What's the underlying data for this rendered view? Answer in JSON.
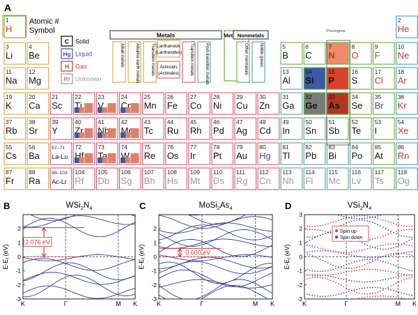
{
  "panel_labels": {
    "a": "A",
    "b": "B",
    "c": "C",
    "d": "D"
  },
  "key": {
    "cell": {
      "number": "1",
      "symbol": "H"
    },
    "text_1": "Atomic #",
    "text_2": "Symbol",
    "states": [
      {
        "sym": "C",
        "label": "Solid",
        "color": "#000000"
      },
      {
        "sym": "Hg",
        "label": "Liquid",
        "color": "#4a4aa8"
      },
      {
        "sym": "H",
        "label": "Gas",
        "color": "#c0392b"
      },
      {
        "sym": "Rf",
        "label": "Unknown",
        "color": "#999999"
      }
    ]
  },
  "category_legend": {
    "metals_label": "Metals",
    "metalloids_label": "Metalloids",
    "nonmetals_label": "Nonmetals",
    "metal_items": [
      {
        "label": "Alkali metals",
        "color": "#d9a43a"
      },
      {
        "label": "Alkaline earth metals",
        "color": "#d9a43a"
      },
      {
        "label": "Transition metals",
        "color": "#d9a43a"
      },
      {
        "label": "Transition metals",
        "color": "#e0566e"
      },
      {
        "label": "Post-transition metals",
        "color": "#5f9ea0"
      }
    ],
    "lanthanoids": "Lanthanoids (Lanthanides)",
    "actinoids": "Actinoids (Actinides)",
    "metalloids_color": "#6aaa3a",
    "nonmetal_items": [
      {
        "label": "Other nonmetals",
        "color": "#6aaa3a"
      },
      {
        "label": "Noble gases",
        "color": "#3aa0c8"
      }
    ]
  },
  "pnictogens_label": "Pnictogens",
  "elements": [
    {
      "n": "1",
      "s": "H",
      "col": 1,
      "row": 1,
      "st": "gas",
      "cat": "nonmetal"
    },
    {
      "n": "2",
      "s": "He",
      "col": 18,
      "row": 1,
      "st": "gas",
      "cat": "noble"
    },
    {
      "n": "3",
      "s": "Li",
      "col": 1,
      "row": 2,
      "st": "solid",
      "cat": "alkali"
    },
    {
      "n": "4",
      "s": "Be",
      "col": 2,
      "row": 2,
      "st": "solid",
      "cat": "alkaline"
    },
    {
      "n": "5",
      "s": "B",
      "col": 13,
      "row": 2,
      "st": "solid",
      "cat": "metalloid"
    },
    {
      "n": "6",
      "s": "C",
      "col": 14,
      "row": 2,
      "st": "solid",
      "cat": "nonmetal"
    },
    {
      "n": "7",
      "s": "N",
      "col": 15,
      "row": 2,
      "st": "gas",
      "cat": "nonmetal",
      "fill": "#f08a6a"
    },
    {
      "n": "8",
      "s": "O",
      "col": 16,
      "row": 2,
      "st": "gas",
      "cat": "nonmetal"
    },
    {
      "n": "9",
      "s": "F",
      "col": 17,
      "row": 2,
      "st": "gas",
      "cat": "nonmetal"
    },
    {
      "n": "10",
      "s": "Ne",
      "col": 18,
      "row": 2,
      "st": "gas",
      "cat": "noble"
    },
    {
      "n": "11",
      "s": "Na",
      "col": 1,
      "row": 3,
      "st": "solid",
      "cat": "alkali"
    },
    {
      "n": "12",
      "s": "Mg",
      "col": 2,
      "row": 3,
      "st": "solid",
      "cat": "alkaline"
    },
    {
      "n": "13",
      "s": "Al",
      "col": 13,
      "row": 3,
      "st": "solid",
      "cat": "post"
    },
    {
      "n": "14",
      "s": "Si",
      "col": 14,
      "row": 3,
      "st": "solid",
      "cat": "metalloid",
      "fill": "#3a5aa8"
    },
    {
      "n": "15",
      "s": "P",
      "col": 15,
      "row": 3,
      "st": "solid",
      "cat": "nonmetal",
      "fill": "#d9412a"
    },
    {
      "n": "16",
      "s": "S",
      "col": 16,
      "row": 3,
      "st": "solid",
      "cat": "nonmetal"
    },
    {
      "n": "17",
      "s": "Cl",
      "col": 17,
      "row": 3,
      "st": "gas",
      "cat": "nonmetal"
    },
    {
      "n": "18",
      "s": "Ar",
      "col": 18,
      "row": 3,
      "st": "gas",
      "cat": "noble"
    },
    {
      "n": "19",
      "s": "K",
      "col": 1,
      "row": 4,
      "st": "solid",
      "cat": "alkali"
    },
    {
      "n": "20",
      "s": "Ca",
      "col": 2,
      "row": 4,
      "st": "solid",
      "cat": "alkaline"
    },
    {
      "n": "21",
      "s": "Sc",
      "col": 3,
      "row": 4,
      "st": "solid",
      "cat": "transition"
    },
    {
      "n": "22",
      "s": "Ti",
      "col": 4,
      "row": 4,
      "st": "solid",
      "cat": "transition",
      "bars": true
    },
    {
      "n": "23",
      "s": "V",
      "col": 5,
      "row": 4,
      "st": "solid",
      "cat": "transition",
      "bars": true
    },
    {
      "n": "24",
      "s": "Cr",
      "col": 6,
      "row": 4,
      "st": "solid",
      "cat": "transition",
      "bars": true
    },
    {
      "n": "25",
      "s": "Mn",
      "col": 7,
      "row": 4,
      "st": "solid",
      "cat": "transition"
    },
    {
      "n": "26",
      "s": "Fe",
      "col": 8,
      "row": 4,
      "st": "solid",
      "cat": "transition"
    },
    {
      "n": "27",
      "s": "Co",
      "col": 9,
      "row": 4,
      "st": "solid",
      "cat": "transition"
    },
    {
      "n": "28",
      "s": "Ni",
      "col": 10,
      "row": 4,
      "st": "solid",
      "cat": "transition"
    },
    {
      "n": "29",
      "s": "Cu",
      "col": 11,
      "row": 4,
      "st": "solid",
      "cat": "transition"
    },
    {
      "n": "30",
      "s": "Zn",
      "col": 12,
      "row": 4,
      "st": "solid",
      "cat": "transition"
    },
    {
      "n": "31",
      "s": "Ga",
      "col": 13,
      "row": 4,
      "st": "solid",
      "cat": "post"
    },
    {
      "n": "32",
      "s": "Ge",
      "col": 14,
      "row": 4,
      "st": "solid",
      "cat": "metalloid",
      "fill": "#7a7a7a"
    },
    {
      "n": "33",
      "s": "As",
      "col": 15,
      "row": 4,
      "st": "solid",
      "cat": "metalloid",
      "fill": "#b8341f"
    },
    {
      "n": "34",
      "s": "Se",
      "col": 16,
      "row": 4,
      "st": "solid",
      "cat": "nonmetal"
    },
    {
      "n": "35",
      "s": "Br",
      "col": 17,
      "row": 4,
      "st": "liquid",
      "cat": "nonmetal"
    },
    {
      "n": "36",
      "s": "Kr",
      "col": 18,
      "row": 4,
      "st": "gas",
      "cat": "noble"
    },
    {
      "n": "37",
      "s": "Rb",
      "col": 1,
      "row": 5,
      "st": "solid",
      "cat": "alkali"
    },
    {
      "n": "38",
      "s": "Sr",
      "col": 2,
      "row": 5,
      "st": "solid",
      "cat": "alkaline"
    },
    {
      "n": "39",
      "s": "Y",
      "col": 3,
      "row": 5,
      "st": "solid",
      "cat": "transition"
    },
    {
      "n": "40",
      "s": "Zr",
      "col": 4,
      "row": 5,
      "st": "solid",
      "cat": "transition",
      "bars": true
    },
    {
      "n": "41",
      "s": "Nb",
      "col": 5,
      "row": 5,
      "st": "solid",
      "cat": "transition",
      "bars": true
    },
    {
      "n": "42",
      "s": "Mo",
      "col": 6,
      "row": 5,
      "st": "solid",
      "cat": "transition",
      "bars": true
    },
    {
      "n": "43",
      "s": "Tc",
      "col": 7,
      "row": 5,
      "st": "solid",
      "cat": "transition"
    },
    {
      "n": "44",
      "s": "Ru",
      "col": 8,
      "row": 5,
      "st": "solid",
      "cat": "transition"
    },
    {
      "n": "45",
      "s": "Rh",
      "col": 9,
      "row": 5,
      "st": "solid",
      "cat": "transition"
    },
    {
      "n": "46",
      "s": "Pd",
      "col": 10,
      "row": 5,
      "st": "solid",
      "cat": "transition"
    },
    {
      "n": "47",
      "s": "Ag",
      "col": 11,
      "row": 5,
      "st": "solid",
      "cat": "transition"
    },
    {
      "n": "48",
      "s": "Cd",
      "col": 12,
      "row": 5,
      "st": "solid",
      "cat": "transition"
    },
    {
      "n": "49",
      "s": "In",
      "col": 13,
      "row": 5,
      "st": "solid",
      "cat": "post"
    },
    {
      "n": "50",
      "s": "Sn",
      "col": 14,
      "row": 5,
      "st": "solid",
      "cat": "post"
    },
    {
      "n": "51",
      "s": "Sb",
      "col": 15,
      "row": 5,
      "st": "solid",
      "cat": "metalloid"
    },
    {
      "n": "52",
      "s": "Te",
      "col": 16,
      "row": 5,
      "st": "solid",
      "cat": "metalloid"
    },
    {
      "n": "53",
      "s": "I",
      "col": 17,
      "row": 5,
      "st": "solid",
      "cat": "nonmetal"
    },
    {
      "n": "54",
      "s": "Xe",
      "col": 18,
      "row": 5,
      "st": "gas",
      "cat": "noble"
    },
    {
      "n": "55",
      "s": "Cs",
      "col": 1,
      "row": 6,
      "st": "solid",
      "cat": "alkali"
    },
    {
      "n": "56",
      "s": "Ba",
      "col": 2,
      "row": 6,
      "st": "solid",
      "cat": "alkaline"
    },
    {
      "n": "57–71",
      "s": "La-Lu",
      "col": 3,
      "row": 6,
      "st": "solid",
      "cat": "lanth"
    },
    {
      "n": "72",
      "s": "Hf",
      "col": 4,
      "row": 6,
      "st": "solid",
      "cat": "transition",
      "bars": true
    },
    {
      "n": "73",
      "s": "Ta",
      "col": 5,
      "row": 6,
      "st": "solid",
      "cat": "transition",
      "bars": true
    },
    {
      "n": "74",
      "s": "W",
      "col": 6,
      "row": 6,
      "st": "solid",
      "cat": "transition",
      "bars": true
    },
    {
      "n": "75",
      "s": "Re",
      "col": 7,
      "row": 6,
      "st": "solid",
      "cat": "transition"
    },
    {
      "n": "76",
      "s": "Os",
      "col": 8,
      "row": 6,
      "st": "solid",
      "cat": "transition"
    },
    {
      "n": "77",
      "s": "Ir",
      "col": 9,
      "row": 6,
      "st": "solid",
      "cat": "transition"
    },
    {
      "n": "78",
      "s": "Pt",
      "col": 10,
      "row": 6,
      "st": "solid",
      "cat": "transition"
    },
    {
      "n": "79",
      "s": "Au",
      "col": 11,
      "row": 6,
      "st": "solid",
      "cat": "transition"
    },
    {
      "n": "80",
      "s": "Hg",
      "col": 12,
      "row": 6,
      "st": "liquid",
      "cat": "transition"
    },
    {
      "n": "81",
      "s": "Tl",
      "col": 13,
      "row": 6,
      "st": "solid",
      "cat": "post"
    },
    {
      "n": "82",
      "s": "Pb",
      "col": 14,
      "row": 6,
      "st": "solid",
      "cat": "post"
    },
    {
      "n": "83",
      "s": "Bi",
      "col": 15,
      "row": 6,
      "st": "solid",
      "cat": "post"
    },
    {
      "n": "84",
      "s": "Po",
      "col": 16,
      "row": 6,
      "st": "solid",
      "cat": "post"
    },
    {
      "n": "85",
      "s": "At",
      "col": 17,
      "row": 6,
      "st": "solid",
      "cat": "metalloid"
    },
    {
      "n": "86",
      "s": "Rn",
      "col": 18,
      "row": 6,
      "st": "gas",
      "cat": "noble"
    },
    {
      "n": "87",
      "s": "Fr",
      "col": 1,
      "row": 7,
      "st": "solid",
      "cat": "alkali"
    },
    {
      "n": "88",
      "s": "Ra",
      "col": 2,
      "row": 7,
      "st": "solid",
      "cat": "alkaline"
    },
    {
      "n": "89–103",
      "s": "Ac-Lr",
      "col": 3,
      "row": 7,
      "st": "solid",
      "cat": "act"
    },
    {
      "n": "104",
      "s": "Rf",
      "col": 4,
      "row": 7,
      "st": "unknown",
      "cat": "transition"
    },
    {
      "n": "105",
      "s": "Db",
      "col": 5,
      "row": 7,
      "st": "unknown",
      "cat": "transition"
    },
    {
      "n": "106",
      "s": "Sg",
      "col": 6,
      "row": 7,
      "st": "unknown",
      "cat": "transition"
    },
    {
      "n": "107",
      "s": "Bh",
      "col": 7,
      "row": 7,
      "st": "unknown",
      "cat": "transition"
    },
    {
      "n": "108",
      "s": "Hs",
      "col": 8,
      "row": 7,
      "st": "unknown",
      "cat": "transition"
    },
    {
      "n": "109",
      "s": "Mt",
      "col": 9,
      "row": 7,
      "st": "unknown",
      "cat": "transition"
    },
    {
      "n": "110",
      "s": "Ds",
      "col": 10,
      "row": 7,
      "st": "unknown",
      "cat": "transition"
    },
    {
      "n": "111",
      "s": "Rg",
      "col": 11,
      "row": 7,
      "st": "unknown",
      "cat": "transition"
    },
    {
      "n": "112",
      "s": "Cn",
      "col": 12,
      "row": 7,
      "st": "unknown",
      "cat": "transition"
    },
    {
      "n": "113",
      "s": "Nh",
      "col": 13,
      "row": 7,
      "st": "unknown",
      "cat": "post"
    },
    {
      "n": "114",
      "s": "Fl",
      "col": 14,
      "row": 7,
      "st": "unknown",
      "cat": "post"
    },
    {
      "n": "115",
      "s": "Mc",
      "col": 15,
      "row": 7,
      "st": "unknown",
      "cat": "post"
    },
    {
      "n": "116",
      "s": "Lv",
      "col": 16,
      "row": 7,
      "st": "unknown",
      "cat": "post"
    },
    {
      "n": "117",
      "s": "Ts",
      "col": 17,
      "row": 7,
      "st": "unknown",
      "cat": "nonmetal"
    },
    {
      "n": "118",
      "s": "Og",
      "col": 18,
      "row": 7,
      "st": "unknown",
      "cat": "noble"
    }
  ],
  "band_colors": {
    "m4": "#3a5aa8",
    "m5": "#e0806a"
  },
  "plots": [
    {
      "id": "B",
      "label_parts": [
        "WSi",
        "2",
        "N",
        "4"
      ],
      "ylabel": "E-E",
      "ylabel_sub": "f",
      "ylabel_unit": " (eV)",
      "yticks": [
        "2",
        "1",
        "0",
        "-1",
        "-2",
        "-3"
      ],
      "ylim": [
        -3,
        3
      ],
      "xticks": [
        "K",
        "Γ",
        "M",
        "K"
      ],
      "gap_label": "2.076 eV",
      "gap_value": 2.076
    },
    {
      "id": "C",
      "label_parts": [
        "MoSi",
        "2",
        "As",
        "4"
      ],
      "ylabel": "E-E",
      "ylabel_sub": "f",
      "ylabel_unit": " (eV)",
      "yticks": [
        "2",
        "1",
        "0",
        "-1",
        "-2",
        "-3"
      ],
      "ylim": [
        -3,
        3
      ],
      "xticks": [
        "K",
        "Γ",
        "M",
        "K"
      ],
      "gap_label": "0.600 eV",
      "gap_value": 0.6
    },
    {
      "id": "D",
      "label_parts": [
        "VSi",
        "2",
        "N",
        "4"
      ],
      "ylabel": "E-E",
      "ylabel_sub": "f",
      "ylabel_unit": " (eV)",
      "yticks": [
        "3",
        "2",
        "1",
        "0",
        "-1",
        "-2",
        "-3"
      ],
      "ylim": [
        -3,
        3
      ],
      "xticks": [
        "K",
        "Γ",
        "M",
        "K"
      ],
      "legend": [
        {
          "label": "Spin up",
          "color": "#d83a3a"
        },
        {
          "label": "Spin down",
          "color": "#3a4ab8"
        }
      ]
    }
  ],
  "colors": {
    "band_line": "#2f3a9a",
    "gap_arrow": "#d0362a",
    "gas": "#c0392b",
    "liquid": "#4a4aa8",
    "unknown": "#999999",
    "solid": "#111111"
  }
}
